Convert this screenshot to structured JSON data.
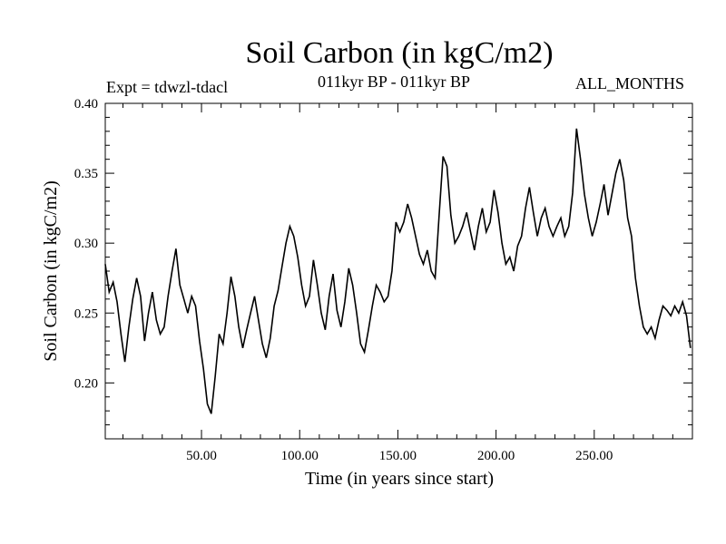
{
  "chart_data": {
    "type": "line",
    "title": "Soil Carbon (in kgC/m2)",
    "subtitle": "011kyr BP - 011kyr BP",
    "experiment": "Expt = tdwzl-tdacl",
    "months": "ALL_MONTHS",
    "xlabel": "Time (in years since start)",
    "ylabel": "Soil Carbon (in kgC/m2)",
    "xlim": [
      1,
      300
    ],
    "ylim": [
      0.16,
      0.4
    ],
    "xticks": [
      50,
      100,
      150,
      200,
      250
    ],
    "xtick_labels": [
      "50.00",
      "100.00",
      "150.00",
      "200.00",
      "250.00"
    ],
    "yticks": [
      0.2,
      0.25,
      0.3,
      0.35,
      0.4
    ],
    "ytick_labels": [
      "0.20",
      "0.25",
      "0.30",
      "0.35",
      "0.40"
    ],
    "grid": false,
    "series": [
      {
        "x": [
          1,
          3,
          5,
          7,
          9,
          11,
          13,
          15,
          17,
          19,
          21,
          23,
          25,
          27,
          29,
          31,
          33,
          35,
          37,
          39,
          41,
          43,
          45,
          47,
          49,
          51,
          53,
          55,
          57,
          59,
          61,
          63,
          65,
          67,
          69,
          71,
          73,
          75,
          77,
          79,
          81,
          83,
          85,
          87,
          89,
          91,
          93,
          95,
          97,
          99,
          101,
          103,
          105,
          107,
          109,
          111,
          113,
          115,
          117,
          119,
          121,
          123,
          125,
          127,
          129,
          131,
          133,
          135,
          137,
          139,
          141,
          143,
          145,
          147,
          149,
          151,
          153,
          155,
          157,
          159,
          161,
          163,
          165,
          167,
          169,
          171,
          173,
          175,
          177,
          179,
          181,
          183,
          185,
          187,
          189,
          191,
          193,
          195,
          197,
          199,
          201,
          203,
          205,
          207,
          209,
          211,
          213,
          215,
          217,
          219,
          221,
          223,
          225,
          227,
          229,
          231,
          233,
          235,
          237,
          239,
          241,
          243,
          245,
          247,
          249,
          251,
          253,
          255,
          257,
          259,
          261,
          263,
          265,
          267,
          269,
          271,
          273,
          275,
          277,
          279,
          281,
          283,
          285,
          287,
          289,
          291,
          293,
          295,
          297,
          299
        ],
        "y": [
          0.285,
          0.265,
          0.272,
          0.258,
          0.235,
          0.215,
          0.24,
          0.26,
          0.275,
          0.262,
          0.23,
          0.25,
          0.265,
          0.245,
          0.235,
          0.24,
          0.262,
          0.28,
          0.296,
          0.27,
          0.26,
          0.25,
          0.262,
          0.255,
          0.23,
          0.21,
          0.185,
          0.178,
          0.205,
          0.235,
          0.228,
          0.25,
          0.276,
          0.262,
          0.24,
          0.225,
          0.238,
          0.25,
          0.262,
          0.245,
          0.228,
          0.218,
          0.232,
          0.255,
          0.266,
          0.283,
          0.3,
          0.312,
          0.305,
          0.29,
          0.27,
          0.255,
          0.262,
          0.288,
          0.27,
          0.25,
          0.238,
          0.262,
          0.278,
          0.252,
          0.24,
          0.258,
          0.282,
          0.27,
          0.25,
          0.228,
          0.222,
          0.238,
          0.255,
          0.27,
          0.265,
          0.258,
          0.262,
          0.28,
          0.315,
          0.308,
          0.315,
          0.328,
          0.318,
          0.305,
          0.292,
          0.285,
          0.295,
          0.28,
          0.275,
          0.32,
          0.362,
          0.355,
          0.32,
          0.3,
          0.305,
          0.312,
          0.322,
          0.308,
          0.295,
          0.312,
          0.325,
          0.308,
          0.315,
          0.338,
          0.322,
          0.3,
          0.285,
          0.29,
          0.28,
          0.298,
          0.305,
          0.325,
          0.34,
          0.322,
          0.305,
          0.318,
          0.325,
          0.312,
          0.305,
          0.312,
          0.318,
          0.305,
          0.312,
          0.336,
          0.382,
          0.36,
          0.335,
          0.318,
          0.305,
          0.315,
          0.328,
          0.342,
          0.32,
          0.335,
          0.35,
          0.36,
          0.345,
          0.318,
          0.305,
          0.275,
          0.255,
          0.24,
          0.235,
          0.24,
          0.232,
          0.245,
          0.255,
          0.252,
          0.248,
          0.255,
          0.25,
          0.258,
          0.248,
          0.225
        ]
      }
    ]
  }
}
